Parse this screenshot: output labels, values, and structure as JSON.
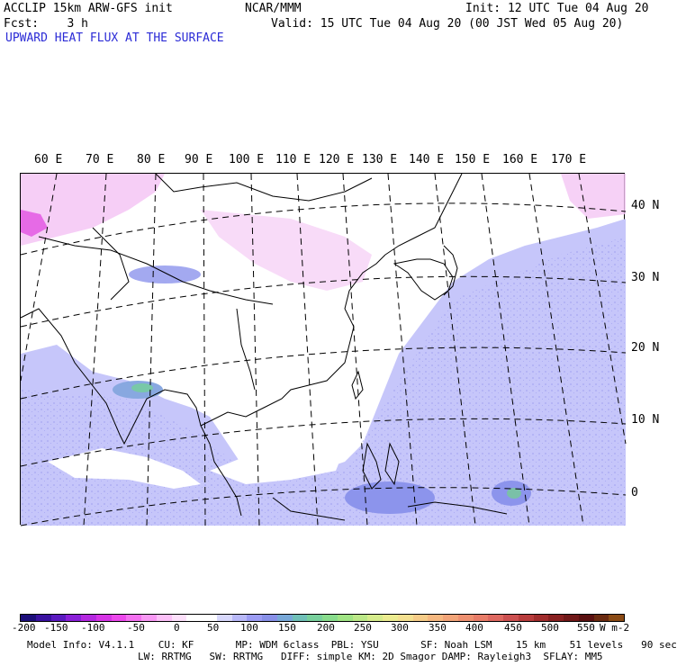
{
  "header": {
    "line1_left": "ACCLIP 15km ARW-GFS init",
    "line1_center": "NCAR/MMM",
    "line1_right": "Init: 12 UTC Tue 04 Aug 20",
    "line2_left": "Fcst:    3 h",
    "line2_right": "Valid: 15 UTC Tue 04 Aug 20 (00 JST Wed 05 Aug 20)",
    "field_title": "UPWARD HEAT FLUX AT THE SURFACE"
  },
  "map": {
    "lon_labels": [
      "60 E",
      "70 E",
      "80 E",
      "90 E",
      "100 E",
      "110 E",
      "120 E",
      "130 E",
      "140 E",
      "150 E",
      "160 E",
      "170 E"
    ],
    "lat_labels": [
      "40 N",
      "30 N",
      "20 N",
      "10 N",
      "0"
    ],
    "colors": {
      "land_pink": "#f4c6f4",
      "ocean_blue": "#c6c6fa",
      "coast": "#000000"
    }
  },
  "colorbar": {
    "ticks": [
      "-200",
      "-150",
      "-100",
      "-50",
      "0",
      "50",
      "100",
      "150",
      "200",
      "250",
      "300",
      "350",
      "400",
      "450",
      "500",
      "550"
    ],
    "unit": "W m-2",
    "colors": [
      "#1c0e7a",
      "#3a12a0",
      "#5a1ac0",
      "#8a20d8",
      "#b428e0",
      "#d634e6",
      "#ec48ec",
      "#f470f0",
      "#f898f4",
      "#fcc0f8",
      "#fde0fb",
      "#ffffff",
      "#ffffff",
      "#d8d8fc",
      "#b8b8f8",
      "#9c9cf4",
      "#8890e8",
      "#78a8d8",
      "#70c0b8",
      "#78d09c",
      "#88dc8c",
      "#a0e484",
      "#bce888",
      "#d6ec8c",
      "#ecec90",
      "#f4e090",
      "#f6cc88",
      "#f6b880",
      "#f2a478",
      "#ee9070",
      "#e87c68",
      "#de6860",
      "#cc5050",
      "#b83c3c",
      "#a02c2c",
      "#882020",
      "#701818",
      "#5a1010",
      "#6a2a10",
      "#8a4a14"
    ]
  },
  "model_info": {
    "line1": "Model Info: V4.1.1    CU: KF       MP: WDM 6class  PBL: YSU       SF: Noah LSM    15 km    51 levels   90 sec",
    "line2": "LW: RRTMG   SW: RRTMG   DIFF: simple KM: 2D Smagor DAMP: Rayleigh3  SFLAY: MM5"
  }
}
